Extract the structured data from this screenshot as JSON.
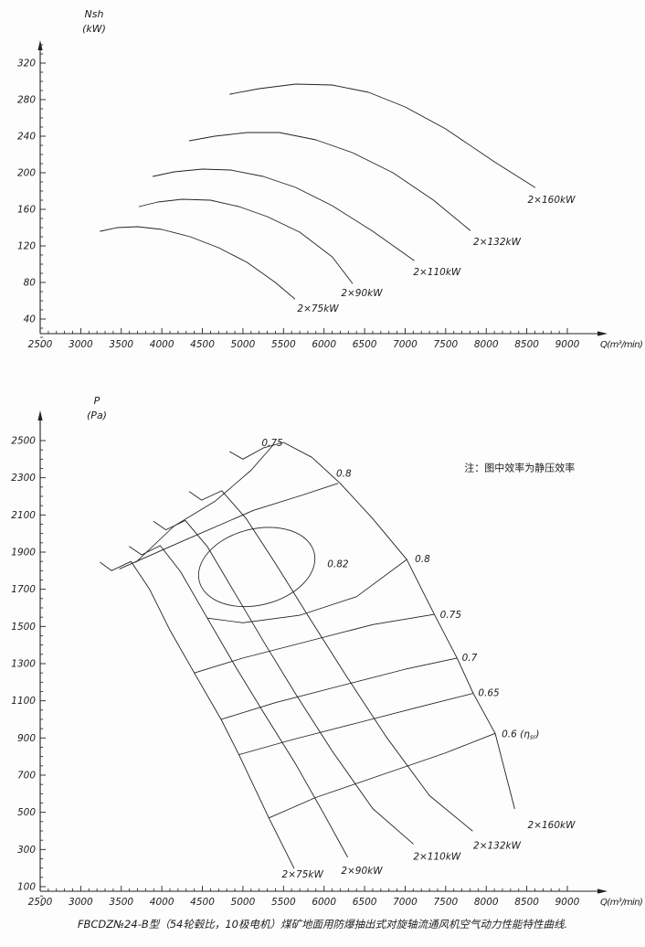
{
  "page": {
    "background": "#fdfdfd",
    "ink": "#222222"
  },
  "caption": "FBCDZ№24-B型（54轮毂比，10极电机）煤矿地面用防爆抽出式对旋轴流通风机空气动力性能特性曲线.",
  "chart_data": [
    {
      "id": "power",
      "type": "line",
      "title": "",
      "y_axis": {
        "label_lines": [
          "Nsh",
          "(kW)"
        ],
        "unit": "kW",
        "min": 40,
        "max": 320,
        "major_step": 40,
        "minor_step": 10,
        "tick_labels": [
          "40",
          "80",
          "120",
          "160",
          "200",
          "240",
          "280",
          "320"
        ]
      },
      "x_axis": {
        "label": "Q(m³/min)",
        "unit": "m³/min",
        "min": 2500,
        "max": 9000,
        "major_step": 500,
        "minor_step": 100,
        "tick_labels": [
          "2500",
          "3000",
          "3500",
          "4000",
          "4500",
          "5000",
          "5500",
          "6000",
          "6500",
          "7000",
          "7500",
          "8000",
          "8500",
          "9000"
        ]
      },
      "series": [
        {
          "name": "2×75kW",
          "points": [
            [
              3240,
              136
            ],
            [
              3450,
              140
            ],
            [
              3700,
              141
            ],
            [
              4000,
              138
            ],
            [
              4350,
              130
            ],
            [
              4700,
              118
            ],
            [
              5050,
              102
            ],
            [
              5400,
              80
            ],
            [
              5640,
              62
            ]
          ],
          "label": {
            "text": "2×75kW",
            "at": [
              5670,
              48
            ]
          }
        },
        {
          "name": "2×90kW",
          "points": [
            [
              3720,
              163
            ],
            [
              3950,
              168
            ],
            [
              4250,
              171
            ],
            [
              4600,
              170
            ],
            [
              4950,
              163
            ],
            [
              5300,
              152
            ],
            [
              5700,
              135
            ],
            [
              6100,
              108
            ],
            [
              6350,
              79
            ]
          ],
          "label": {
            "text": "2×90kW",
            "at": [
              6210,
              65
            ]
          }
        },
        {
          "name": "2×110kW",
          "points": [
            [
              3890,
              196
            ],
            [
              4150,
              201
            ],
            [
              4500,
              204
            ],
            [
              4850,
              203
            ],
            [
              5250,
              196
            ],
            [
              5650,
              184
            ],
            [
              6100,
              164
            ],
            [
              6600,
              136
            ],
            [
              7110,
              104
            ]
          ],
          "label": {
            "text": "2×110kW",
            "at": [
              7100,
              88
            ]
          }
        },
        {
          "name": "2×132kW",
          "points": [
            [
              4340,
              235
            ],
            [
              4650,
              240
            ],
            [
              5050,
              244
            ],
            [
              5450,
              244
            ],
            [
              5900,
              236
            ],
            [
              6350,
              222
            ],
            [
              6850,
              200
            ],
            [
              7350,
              170
            ],
            [
              7800,
              137
            ]
          ],
          "label": {
            "text": "2×132kW",
            "at": [
              7840,
              121
            ]
          }
        },
        {
          "name": "2×160kW",
          "points": [
            [
              4840,
              286
            ],
            [
              5200,
              292
            ],
            [
              5650,
              297
            ],
            [
              6100,
              296
            ],
            [
              6550,
              288
            ],
            [
              7000,
              272
            ],
            [
              7500,
              248
            ],
            [
              8100,
              212
            ],
            [
              8600,
              184
            ]
          ],
          "label": {
            "text": "2×160kW",
            "at": [
              8510,
              167
            ]
          }
        }
      ]
    },
    {
      "id": "pressure",
      "type": "line",
      "title": "",
      "y_axis": {
        "label_lines": [
          "P",
          "(Pa)"
        ],
        "unit": "Pa",
        "min": 100,
        "max": 2500,
        "major_step": 200,
        "minor_step": 50,
        "tick_labels": [
          "100",
          "300",
          "500",
          "700",
          "900",
          "1100",
          "1300",
          "1500",
          "1700",
          "1900",
          "2100",
          "2300",
          "2500"
        ]
      },
      "x_axis": {
        "label": "Q(m³/min)",
        "unit": "m³/min",
        "min": 2500,
        "max": 9000,
        "major_step": 500,
        "minor_step": 100,
        "tick_labels": [
          "2500",
          "3000",
          "3500",
          "4000",
          "4500",
          "5000",
          "5500",
          "6000",
          "6500",
          "7000",
          "7500",
          "8000",
          "8500",
          "9000"
        ]
      },
      "series": [
        {
          "name": "2×75kW",
          "points": [
            [
              3240,
              1845
            ],
            [
              3380,
              1800
            ],
            [
              3620,
              1850
            ],
            [
              3850,
              1700
            ],
            [
              4100,
              1480
            ],
            [
              4400,
              1250
            ],
            [
              4730,
              1000
            ],
            [
              4950,
              810
            ],
            [
              5320,
              470
            ],
            [
              5630,
              200
            ]
          ],
          "label": {
            "text": "2×75kW",
            "at": [
              5480,
              150
            ]
          }
        },
        {
          "name": "2×90kW",
          "points": [
            [
              3600,
              1930
            ],
            [
              3750,
              1885
            ],
            [
              3980,
              1935
            ],
            [
              4230,
              1795
            ],
            [
              4560,
              1545
            ],
            [
              4900,
              1290
            ],
            [
              5250,
              1040
            ],
            [
              5650,
              760
            ],
            [
              6000,
              490
            ],
            [
              6290,
              260
            ]
          ],
          "label": {
            "text": "2×90kW",
            "at": [
              6210,
              170
            ]
          }
        },
        {
          "name": "2×110kW",
          "points": [
            [
              3900,
              2065
            ],
            [
              4050,
              2020
            ],
            [
              4290,
              2070
            ],
            [
              4560,
              1930
            ],
            [
              4900,
              1680
            ],
            [
              5280,
              1400
            ],
            [
              5660,
              1130
            ],
            [
              6100,
              830
            ],
            [
              6600,
              520
            ],
            [
              7100,
              330
            ]
          ],
          "label": {
            "text": "2×110kW",
            "at": [
              7100,
              245
            ]
          }
        },
        {
          "name": "2×132kW",
          "points": [
            [
              4340,
              2225
            ],
            [
              4490,
              2180
            ],
            [
              4740,
              2230
            ],
            [
              5040,
              2080
            ],
            [
              5400,
              1840
            ],
            [
              5800,
              1560
            ],
            [
              6280,
              1230
            ],
            [
              6760,
              910
            ],
            [
              7300,
              590
            ],
            [
              7830,
              400
            ]
          ],
          "label": {
            "text": "2×132kW",
            "at": [
              7840,
              305
            ]
          }
        },
        {
          "name": "2×160kW",
          "points": [
            [
              4840,
              2440
            ],
            [
              5000,
              2400
            ],
            [
              5250,
              2460
            ],
            [
              5500,
              2490
            ],
            [
              5850,
              2410
            ],
            [
              6200,
              2270
            ],
            [
              6600,
              2080
            ],
            [
              7020,
              1860
            ],
            [
              7360,
              1565
            ],
            [
              7640,
              1330
            ],
            [
              7840,
              1140
            ],
            [
              8110,
              925
            ],
            [
              8350,
              520
            ]
          ],
          "label": {
            "text": "2×160kW",
            "at": [
              8510,
              415
            ]
          }
        }
      ],
      "contours": [
        {
          "value": 0.75,
          "branch": "upper",
          "points": [
            [
              3680,
              1845
            ],
            [
              4150,
              2040
            ],
            [
              4660,
              2175
            ],
            [
              5100,
              2340
            ],
            [
              5360,
              2470
            ]
          ],
          "label": {
            "text": "0.75",
            "at": [
              5230,
              2470
            ]
          }
        },
        {
          "value": 0.8,
          "branch": "upper",
          "points": [
            [
              3480,
              1810
            ],
            [
              4260,
              1960
            ],
            [
              5130,
              2125
            ],
            [
              5720,
              2205
            ],
            [
              6170,
              2270
            ]
          ],
          "label": {
            "text": "0.8",
            "at": [
              6150,
              2305
            ]
          }
        },
        {
          "value": 0.8,
          "branch": "lower",
          "points": [
            [
              4560,
              1545
            ],
            [
              5000,
              1520
            ],
            [
              5700,
              1560
            ],
            [
              6400,
              1660
            ],
            [
              7020,
              1860
            ]
          ],
          "label": {
            "text": "0.8",
            "at": [
              7120,
              1845
            ]
          }
        },
        {
          "value": 0.75,
          "branch": "lower",
          "points": [
            [
              4400,
              1250
            ],
            [
              5000,
              1330
            ],
            [
              5800,
              1420
            ],
            [
              6600,
              1510
            ],
            [
              7360,
              1565
            ]
          ],
          "label": {
            "text": "0.75",
            "at": [
              7430,
              1545
            ]
          }
        },
        {
          "value": 0.7,
          "branch": "lower",
          "points": [
            [
              4730,
              1000
            ],
            [
              5400,
              1090
            ],
            [
              6200,
              1180
            ],
            [
              7000,
              1270
            ],
            [
              7640,
              1330
            ]
          ],
          "label": {
            "text": "0.7",
            "at": [
              7700,
              1315
            ]
          }
        },
        {
          "value": 0.65,
          "branch": "lower",
          "points": [
            [
              4950,
              810
            ],
            [
              5600,
              890
            ],
            [
              6400,
              980
            ],
            [
              7200,
              1070
            ],
            [
              7840,
              1140
            ]
          ],
          "label": {
            "text": "0.65",
            "at": [
              7900,
              1125
            ]
          }
        },
        {
          "value": 0.6,
          "branch": "lower",
          "points": [
            [
              5320,
              470
            ],
            [
              5900,
              580
            ],
            [
              6700,
              700
            ],
            [
              7500,
              820
            ],
            [
              8110,
              925
            ]
          ],
          "label": {
            "text": "0.6 (ηsr)",
            "rich": {
              "pre": "0.6 (η",
              "sub": "sr",
              "post": ")"
            },
            "at": [
              8190,
              905
            ]
          }
        }
      ],
      "efficiency_oval": {
        "value": 0.82,
        "center": [
          5170,
          1820
        ],
        "rx_q": 730,
        "ry_p": 205,
        "rotation_deg": -14,
        "label": {
          "text": "0.82",
          "at": [
            6040,
            1820
          ]
        }
      },
      "note": {
        "text": "注：图中效率为静压效率",
        "at": [
          7730,
          2335
        ]
      }
    }
  ]
}
